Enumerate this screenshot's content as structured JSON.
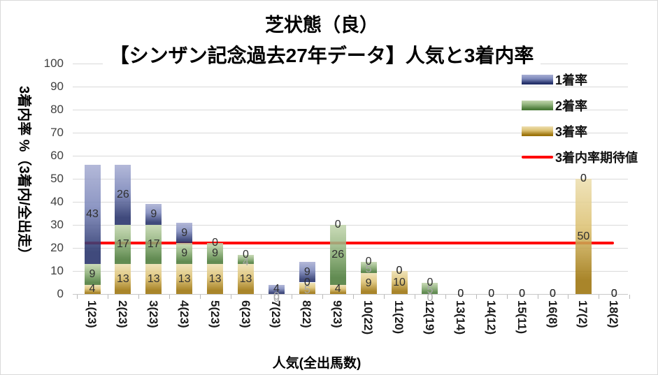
{
  "titles": {
    "line1": "芝状態（良）",
    "line2": "【シンザン記念過去27年データ】人気と3着内率"
  },
  "axes": {
    "y_label": "3着内率 %（3着内/全出走）",
    "x_label": "人気(全出馬数)",
    "y_ticks": [
      0,
      10,
      20,
      30,
      40,
      50,
      60,
      70,
      80,
      90,
      100
    ]
  },
  "legend": [
    {
      "key": "win1",
      "label": "1着率",
      "type": "bar"
    },
    {
      "key": "win2",
      "label": "2着率",
      "type": "bar"
    },
    {
      "key": "win3",
      "label": "3着率",
      "type": "bar"
    },
    {
      "key": "expected",
      "label": "3着内率期待値",
      "type": "line"
    }
  ],
  "colors": {
    "win1": {
      "top": "#a8aed3",
      "mid": "#7d88bb",
      "dark": "#232f68"
    },
    "win2": {
      "top": "#c3d6ae",
      "mid": "#8fb17a",
      "dark": "#4a7a38"
    },
    "win3": {
      "top": "#eddfb0",
      "mid": "#dcc172",
      "dark": "#9c730a"
    },
    "expected": "#ff0000",
    "grid": "#d9d9d9"
  },
  "chart_data": {
    "type": "bar",
    "stacked": true,
    "title": "芝状態（良）【シンザン記念過去27年データ】人気と3着内率",
    "xlabel": "人気(全出馬数)",
    "ylabel": "3着内率 %（3着内/全出走）",
    "ylim": [
      0,
      100
    ],
    "grid": true,
    "legend_position": "top-right",
    "categories": [
      "1(23)",
      "2(23)",
      "3(23)",
      "4(23)",
      "5(23)",
      "6(23)",
      "7(23)",
      "8(22)",
      "9(23)",
      "10(22)",
      "11(20)",
      "12(19)",
      "13(14)",
      "14(12)",
      "15(11)",
      "16(8)",
      "17(2)",
      "18(2)"
    ],
    "series": [
      {
        "name": "1着率",
        "key": "win1",
        "values": [
          43,
          26,
          9,
          9,
          0,
          0,
          4,
          9,
          0,
          0,
          0,
          0,
          0,
          0,
          0,
          0,
          0,
          0
        ]
      },
      {
        "name": "2着率",
        "key": "win2",
        "values": [
          9,
          17,
          17,
          9,
          9,
          4,
          0,
          0,
          26,
          5,
          0,
          5,
          0,
          0,
          0,
          0,
          0,
          0
        ]
      },
      {
        "name": "3着率",
        "key": "win3",
        "values": [
          4,
          13,
          13,
          13,
          13,
          13,
          0,
          5,
          4,
          9,
          10,
          0,
          0,
          0,
          0,
          0,
          50,
          0
        ]
      }
    ],
    "expected_line": 22
  }
}
